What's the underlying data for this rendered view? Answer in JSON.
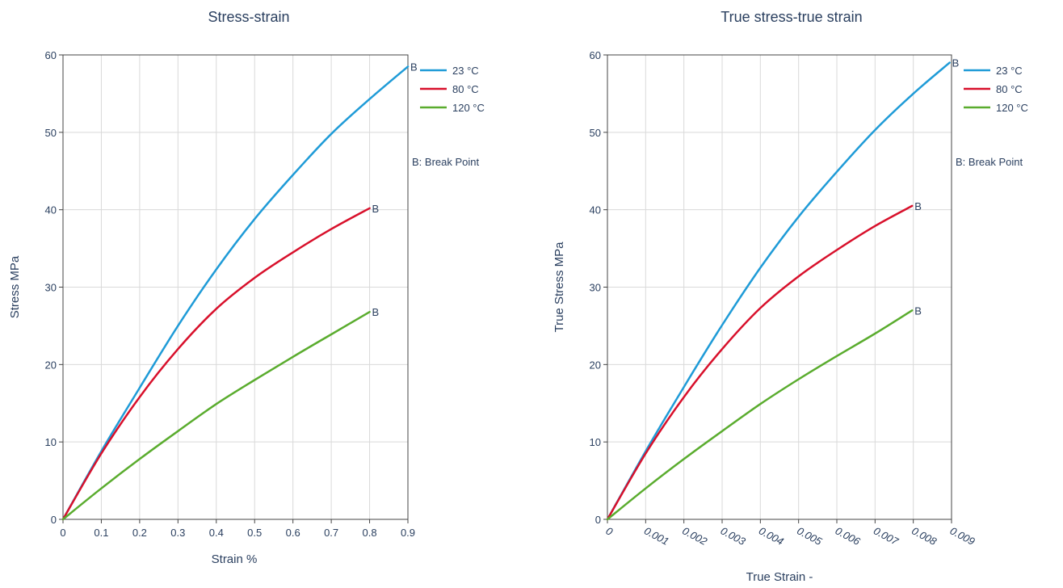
{
  "chart_data": [
    {
      "type": "line",
      "title": "Stress-strain",
      "xlabel": "Strain %",
      "ylabel": "Stress MPa",
      "xlim": [
        0,
        0.9
      ],
      "ylim": [
        0,
        60
      ],
      "xticks": [
        "0",
        "0.1",
        "0.2",
        "0.3",
        "0.4",
        "0.5",
        "0.6",
        "0.7",
        "0.8",
        "0.9"
      ],
      "yticks": [
        "0",
        "10",
        "20",
        "30",
        "40",
        "50",
        "60"
      ],
      "grid": true,
      "legend_position": "right",
      "legend_note": "B: Break Point",
      "series": [
        {
          "name": "23 °C",
          "color": "#1f9bd7",
          "break_label": "B",
          "x": [
            0,
            0.1,
            0.2,
            0.3,
            0.4,
            0.5,
            0.6,
            0.7,
            0.8,
            0.9
          ],
          "y": [
            0,
            8.8,
            17,
            25,
            32.3,
            38.8,
            44.5,
            49.8,
            54.3,
            58.5
          ]
        },
        {
          "name": "80 °C",
          "color": "#d8102b",
          "break_label": "B",
          "x": [
            0,
            0.1,
            0.2,
            0.3,
            0.4,
            0.5,
            0.6,
            0.7,
            0.8
          ],
          "y": [
            0,
            8.5,
            15.8,
            22,
            27.2,
            31.2,
            34.5,
            37.5,
            40.2
          ]
        },
        {
          "name": "120 °C",
          "color": "#5aac2e",
          "break_label": "B",
          "x": [
            0,
            0.1,
            0.2,
            0.3,
            0.4,
            0.5,
            0.6,
            0.7,
            0.8
          ],
          "y": [
            0,
            4,
            7.8,
            11.4,
            14.9,
            18,
            21,
            23.9,
            26.8
          ]
        }
      ]
    },
    {
      "type": "line",
      "title": "True stress-true strain",
      "xlabel": "True Strain -",
      "ylabel": "True Stress MPa",
      "xlim": [
        0,
        0.009
      ],
      "ylim": [
        0,
        60
      ],
      "xticks": [
        "0",
        "0.001",
        "0.002",
        "0.003",
        "0.004",
        "0.005",
        "0.006",
        "0.007",
        "0.008",
        "0.009"
      ],
      "yticks": [
        "0",
        "10",
        "20",
        "30",
        "40",
        "50",
        "60"
      ],
      "grid": true,
      "legend_position": "right",
      "legend_note": "B: Break Point",
      "series": [
        {
          "name": "23 °C",
          "color": "#1f9bd7",
          "break_label": "B",
          "x": [
            0,
            0.001,
            0.002,
            0.003,
            0.004,
            0.005,
            0.006,
            0.007,
            0.008,
            0.00895
          ],
          "y": [
            0,
            8.8,
            17.1,
            25.1,
            32.5,
            39.1,
            44.9,
            50.3,
            55,
            59
          ]
        },
        {
          "name": "80 °C",
          "color": "#d8102b",
          "break_label": "B",
          "x": [
            0,
            0.001,
            0.002,
            0.003,
            0.004,
            0.005,
            0.006,
            0.007,
            0.00797
          ],
          "y": [
            0,
            8.5,
            15.8,
            22,
            27.3,
            31.4,
            34.8,
            37.9,
            40.5
          ]
        },
        {
          "name": "120 °C",
          "color": "#5aac2e",
          "break_label": "B",
          "x": [
            0,
            0.001,
            0.002,
            0.003,
            0.004,
            0.005,
            0.006,
            0.007,
            0.00797
          ],
          "y": [
            0,
            4,
            7.8,
            11.4,
            14.9,
            18.1,
            21.1,
            24,
            27
          ]
        }
      ]
    }
  ]
}
